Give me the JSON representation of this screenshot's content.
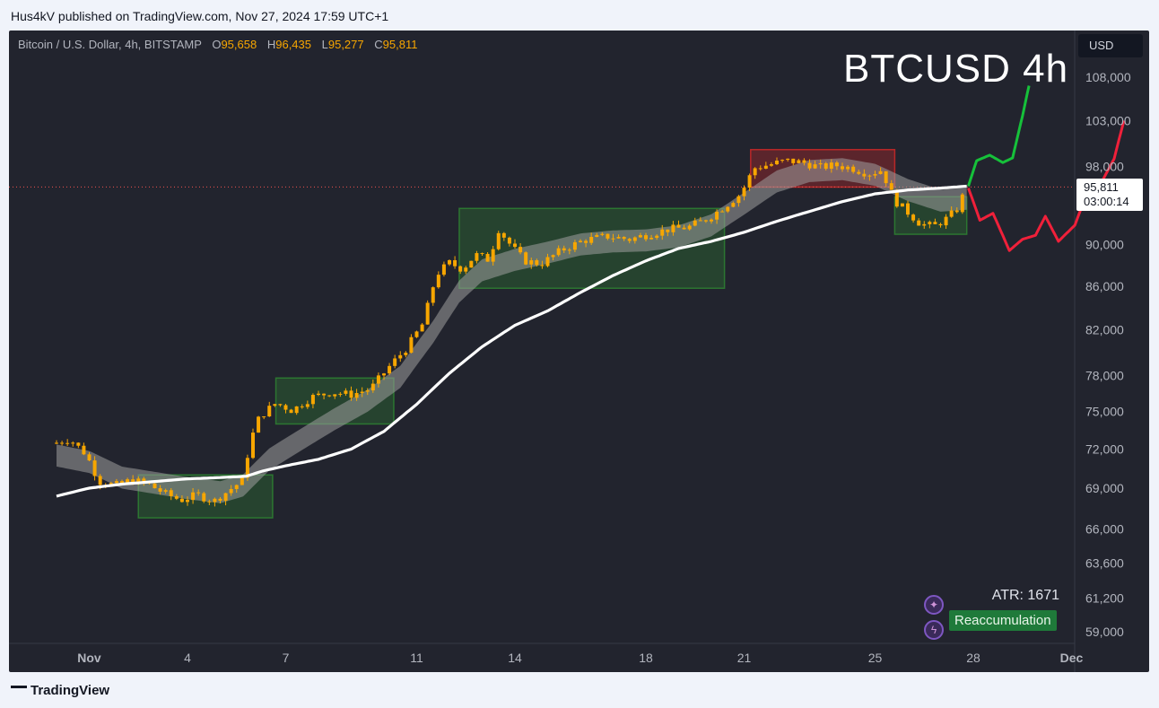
{
  "publish_line": "Hus4kV published on TradingView.com, Nov 27, 2024 17:59 UTC+1",
  "legend": {
    "symbol": "Bitcoin / U.S. Dollar, 4h, BITSTAMP",
    "open_label": "O",
    "open": "95,658",
    "high_label": "H",
    "high": "96,435",
    "low_label": "L",
    "low": "95,277",
    "close_label": "C",
    "close": "95,811"
  },
  "currency": "USD",
  "big_title": "BTCUSD 4h",
  "last_price": {
    "price": "95,811",
    "countdown": "03:00:14"
  },
  "atr": "ATR: 1671",
  "reaccumulation_label": "Reaccumulation",
  "branding": "TradingView",
  "colors": {
    "background": "#22242e",
    "candle": "#f7a600",
    "ema_white": "#ffffff",
    "ribbon": "#9e9e9e",
    "box_green": "#2e7d32",
    "box_red": "#c62828",
    "projection_up": "#16c13a",
    "projection_down": "#f0203a",
    "price_line": "#ef5350"
  },
  "chart_data": {
    "type": "candlestick",
    "title": "BTCUSD 4h",
    "y_ticks": [
      108000,
      103000,
      98000,
      90000,
      86000,
      82000,
      78000,
      75000,
      72000,
      69000,
      66000,
      63600,
      61200,
      59000
    ],
    "y_tick_labels": [
      "108,000",
      "103,000",
      "98,000",
      "90,000",
      "86,000",
      "82,000",
      "78,000",
      "75,000",
      "72,000",
      "69,000",
      "66,000",
      "63,600",
      "61,200",
      "59,000"
    ],
    "x_ticks": [
      {
        "label": "Nov",
        "day": 1
      },
      {
        "label": "4",
        "day": 4
      },
      {
        "label": "7",
        "day": 7
      },
      {
        "label": "11",
        "day": 11
      },
      {
        "label": "14",
        "day": 14
      },
      {
        "label": "18",
        "day": 18
      },
      {
        "label": "21",
        "day": 21
      },
      {
        "label": "25",
        "day": 25
      },
      {
        "label": "28",
        "day": 28
      },
      {
        "label": "Dec",
        "day": 31
      }
    ],
    "current_price": 95811,
    "close_anchors": [
      [
        0.0,
        72500
      ],
      [
        0.4,
        72800
      ],
      [
        0.9,
        71600
      ],
      [
        1.3,
        69500
      ],
      [
        1.8,
        69200
      ],
      [
        2.3,
        69600
      ],
      [
        2.8,
        69300
      ],
      [
        3.3,
        68600
      ],
      [
        3.8,
        68100
      ],
      [
        4.3,
        68500
      ],
      [
        4.8,
        68000
      ],
      [
        5.3,
        68900
      ],
      [
        5.7,
        69600
      ],
      [
        5.9,
        72500
      ],
      [
        6.2,
        74600
      ],
      [
        6.7,
        75700
      ],
      [
        7.2,
        75100
      ],
      [
        7.8,
        76200
      ],
      [
        8.4,
        76600
      ],
      [
        9.0,
        76400
      ],
      [
        9.6,
        76900
      ],
      [
        10.2,
        78900
      ],
      [
        10.7,
        80400
      ],
      [
        11.2,
        82600
      ],
      [
        11.6,
        87100
      ],
      [
        12.0,
        88200
      ],
      [
        12.4,
        87600
      ],
      [
        12.8,
        89000
      ],
      [
        13.2,
        88500
      ],
      [
        13.5,
        91500
      ],
      [
        13.9,
        89800
      ],
      [
        14.3,
        88400
      ],
      [
        14.8,
        88100
      ],
      [
        15.4,
        89400
      ],
      [
        16.1,
        90400
      ],
      [
        16.8,
        90800
      ],
      [
        17.5,
        90500
      ],
      [
        18.1,
        91000
      ],
      [
        18.7,
        91500
      ],
      [
        19.3,
        91700
      ],
      [
        19.9,
        92600
      ],
      [
        20.4,
        93800
      ],
      [
        20.9,
        95100
      ],
      [
        21.3,
        97800
      ],
      [
        21.8,
        98200
      ],
      [
        22.3,
        98600
      ],
      [
        22.8,
        98400
      ],
      [
        23.3,
        97900
      ],
      [
        23.8,
        98100
      ],
      [
        24.3,
        97800
      ],
      [
        24.8,
        97200
      ],
      [
        25.2,
        97600
      ],
      [
        25.6,
        94400
      ],
      [
        26.0,
        93200
      ],
      [
        26.4,
        92000
      ],
      [
        26.8,
        91800
      ],
      [
        27.2,
        92600
      ],
      [
        27.5,
        93500
      ],
      [
        27.8,
        95811
      ]
    ],
    "ema_long": [
      [
        0.0,
        68400
      ],
      [
        1.0,
        69000
      ],
      [
        2.0,
        69300
      ],
      [
        3.0,
        69500
      ],
      [
        4.0,
        69700
      ],
      [
        5.0,
        69800
      ],
      [
        5.8,
        69900
      ],
      [
        6.3,
        70300
      ],
      [
        7.0,
        70700
      ],
      [
        8.0,
        71200
      ],
      [
        9.0,
        72000
      ],
      [
        10.0,
        73400
      ],
      [
        11.0,
        75600
      ],
      [
        12.0,
        78200
      ],
      [
        13.0,
        80500
      ],
      [
        14.0,
        82400
      ],
      [
        15.0,
        83700
      ],
      [
        16.0,
        85400
      ],
      [
        17.0,
        87000
      ],
      [
        18.0,
        88400
      ],
      [
        19.0,
        89600
      ],
      [
        20.0,
        90300
      ],
      [
        21.0,
        91200
      ],
      [
        22.0,
        92300
      ],
      [
        23.0,
        93300
      ],
      [
        24.0,
        94300
      ],
      [
        25.0,
        95100
      ],
      [
        26.0,
        95500
      ],
      [
        27.0,
        95700
      ],
      [
        27.8,
        95900
      ]
    ],
    "ribbon_center": [
      [
        0.0,
        71500
      ],
      [
        1.0,
        71000
      ],
      [
        2.0,
        69800
      ],
      [
        3.0,
        69400
      ],
      [
        4.0,
        69000
      ],
      [
        5.0,
        68700
      ],
      [
        5.7,
        69200
      ],
      [
        6.5,
        71200
      ],
      [
        7.5,
        72800
      ],
      [
        8.5,
        74400
      ],
      [
        9.5,
        75900
      ],
      [
        10.5,
        77900
      ],
      [
        11.5,
        81800
      ],
      [
        12.3,
        85500
      ],
      [
        13.0,
        87500
      ],
      [
        14.0,
        88500
      ],
      [
        15.0,
        89200
      ],
      [
        16.0,
        90000
      ],
      [
        17.0,
        90300
      ],
      [
        18.0,
        90400
      ],
      [
        19.0,
        90800
      ],
      [
        20.0,
        91900
      ],
      [
        21.0,
        94100
      ],
      [
        22.0,
        96400
      ],
      [
        23.0,
        97500
      ],
      [
        24.0,
        97700
      ],
      [
        25.0,
        97100
      ],
      [
        26.0,
        95500
      ],
      [
        27.0,
        94400
      ],
      [
        27.8,
        94600
      ]
    ],
    "boxes": [
      {
        "color": "green",
        "x0": 2.5,
        "x1": 6.6,
        "y0": 66800,
        "y1": 70000
      },
      {
        "color": "green",
        "x0": 6.7,
        "x1": 10.3,
        "y0": 74000,
        "y1": 77800
      },
      {
        "color": "green",
        "x0": 12.3,
        "x1": 20.4,
        "y0": 85800,
        "y1": 93600
      },
      {
        "color": "red",
        "x0": 21.2,
        "x1": 25.6,
        "y0": 95800,
        "y1": 99800
      },
      {
        "color": "green",
        "x0": 25.6,
        "x1": 27.8,
        "y0": 91000,
        "y1": 94800
      }
    ],
    "projection_up": [
      [
        27.85,
        95900
      ],
      [
        28.1,
        98600
      ],
      [
        28.5,
        99200
      ],
      [
        28.9,
        98400
      ],
      [
        29.2,
        98900
      ],
      [
        29.5,
        103500
      ],
      [
        29.7,
        107000
      ]
    ],
    "projection_down": [
      [
        27.85,
        95700
      ],
      [
        28.2,
        92400
      ],
      [
        28.6,
        93100
      ],
      [
        29.1,
        89400
      ],
      [
        29.5,
        90500
      ],
      [
        29.9,
        90900
      ],
      [
        30.2,
        92800
      ],
      [
        30.6,
        90300
      ],
      [
        31.1,
        91900
      ],
      [
        31.5,
        95400
      ],
      [
        31.9,
        96200
      ],
      [
        32.3,
        98800
      ],
      [
        32.6,
        103000
      ]
    ]
  }
}
